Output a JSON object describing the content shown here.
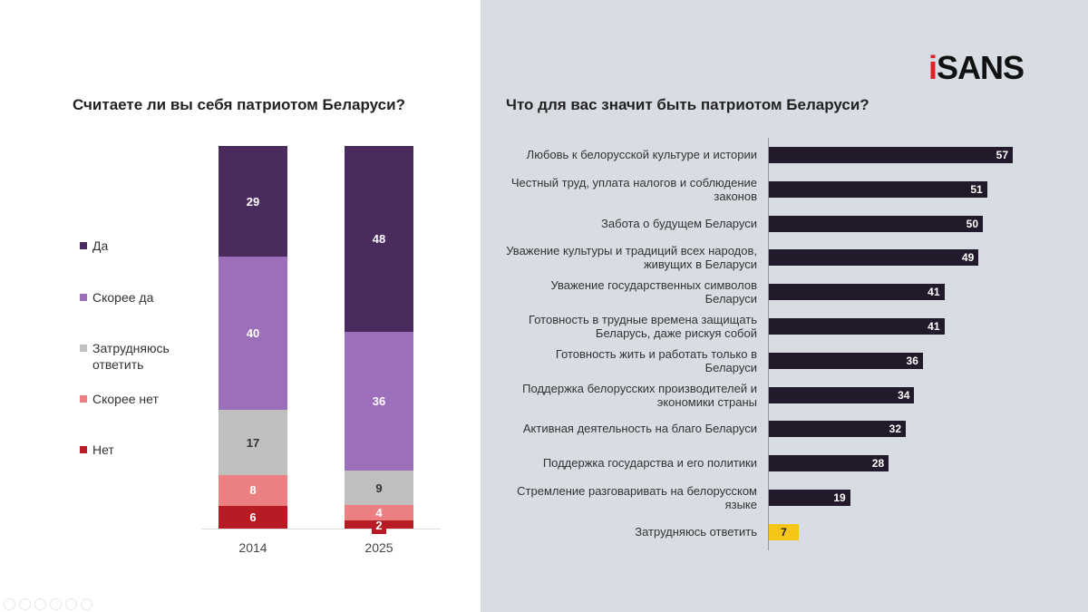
{
  "chart_data": [
    {
      "type": "stacked-bar",
      "title": "Считаете ли вы себя патриотом Беларуси?",
      "categories": [
        "2014",
        "2025"
      ],
      "series": [
        {
          "name": "Да",
          "color": "#4a2b5e",
          "values": [
            29,
            48
          ]
        },
        {
          "name": "Скорее да",
          "color": "#9b6fb9",
          "values": [
            40,
            36
          ]
        },
        {
          "name": "Затрудняюсь ответить",
          "color": "#bfbfbf",
          "values": [
            17,
            9
          ]
        },
        {
          "name": "Скорее нет",
          "color": "#ec7f82",
          "values": [
            8,
            4
          ]
        },
        {
          "name": "Нет",
          "color": "#b71c25",
          "values": [
            6,
            2
          ]
        }
      ],
      "legend": "left"
    },
    {
      "type": "bar",
      "orientation": "horizontal",
      "title": "Что для вас значит быть патриотом Беларуси?",
      "categories": [
        "Любовь к белорусской культуре и истории",
        "Честный труд, уплата налогов и соблюдение законов",
        "Забота о будущем Беларуси",
        "Уважение культуры и традиций всех народов, живущих в Беларуси",
        "Уважение государственных символов Беларуси",
        "Готовность в трудные времена защищать Беларусь, даже рискуя собой",
        "Готовность жить и работать только в Беларуси",
        "Поддержка белорусских производителей и экономики страны",
        "Активная деятельность на благо Беларуси",
        "Поддержка государства и его политики",
        "Стремление разговаривать на белорусском языке",
        "Затрудняюсь ответить"
      ],
      "values": [
        57,
        51,
        50,
        49,
        41,
        41,
        36,
        34,
        32,
        28,
        19,
        7
      ],
      "colors": {
        "default": "#221a2a",
        "highlight": "#f5c518"
      }
    }
  ],
  "logo": {
    "prefix": "i",
    "text": "SANS"
  }
}
